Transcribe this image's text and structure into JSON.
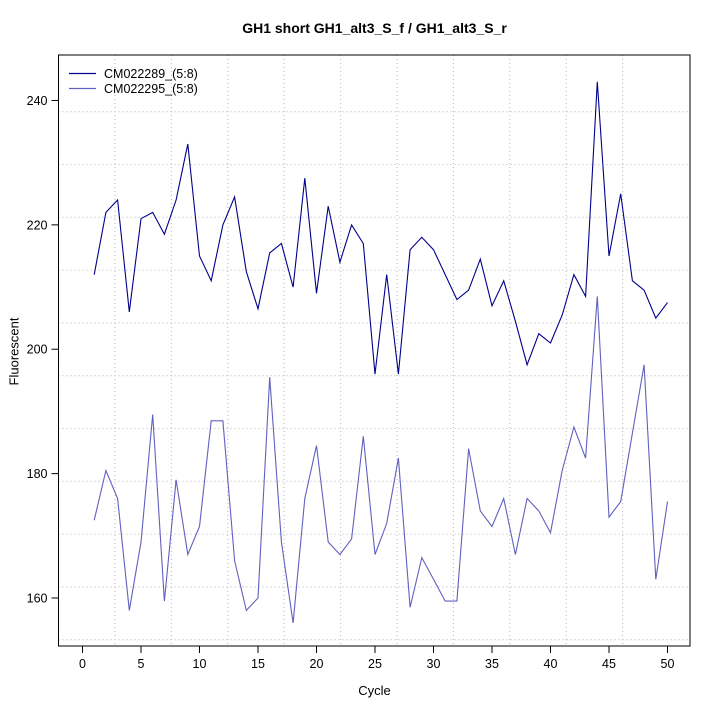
{
  "title": "GH1 short GH1_alt3_S_f / GH1_alt3_S_r",
  "axes": {
    "x_label": "Cycle",
    "y_label": "Fluorescent",
    "x_ticks": [
      0,
      5,
      10,
      15,
      20,
      25,
      30,
      35,
      40,
      45,
      50
    ],
    "y_ticks": [
      160,
      180,
      200,
      220,
      240
    ]
  },
  "legend": {
    "position": "top-left",
    "entries": [
      {
        "label": "CM022289_(5:8)",
        "color": "#00008B"
      },
      {
        "label": "CM022295_(5:8)",
        "color": "#6060C0"
      }
    ]
  },
  "chart_data": {
    "type": "line",
    "title": "GH1 short GH1_alt3_S_f / GH1_alt3_S_r",
    "xlabel": "Cycle",
    "ylabel": "Fluorescent",
    "xlim": [
      -2,
      52
    ],
    "ylim": [
      151.5,
      247.5
    ],
    "grid": "dotted",
    "legend_position": "top-left",
    "x": [
      1,
      2,
      3,
      4,
      5,
      6,
      7,
      8,
      9,
      10,
      11,
      12,
      13,
      14,
      15,
      16,
      17,
      18,
      19,
      20,
      21,
      22,
      23,
      24,
      25,
      26,
      27,
      28,
      29,
      30,
      31,
      32,
      33,
      34,
      35,
      36,
      37,
      38,
      39,
      40,
      41,
      42,
      43,
      44,
      45,
      46,
      47,
      48,
      49,
      50
    ],
    "series": [
      {
        "name": "CM022289_(5:8)",
        "color": "#00008B",
        "values": [
          212,
          222,
          224,
          206,
          221,
          222,
          218.5,
          224,
          233,
          215,
          211,
          220,
          224.5,
          212.5,
          206.5,
          215.5,
          217,
          210,
          227.5,
          209,
          223,
          214,
          220,
          217,
          196,
          212,
          196,
          216,
          218,
          216,
          212,
          208,
          209.5,
          214.5,
          207,
          211,
          204.5,
          197.5,
          202.5,
          201,
          205.5,
          212,
          208.5,
          243,
          215,
          225,
          211,
          209.5,
          205,
          207.5
        ]
      },
      {
        "name": "CM022295_(5:8)",
        "color": "#6060C0",
        "values": [
          172.5,
          180.5,
          176,
          158,
          169,
          189.5,
          159.5,
          179,
          167,
          171.5,
          188.5,
          188.5,
          166,
          158,
          160,
          195.5,
          169,
          156,
          176,
          184.5,
          169,
          167,
          169.5,
          186,
          167,
          172,
          182.5,
          158.5,
          166.5,
          163,
          159.5,
          159.5,
          184,
          174,
          171.5,
          176,
          167,
          176,
          174,
          170.5,
          180.5,
          187.5,
          182.5,
          208.5,
          173,
          175.5,
          186.5,
          197.5,
          163,
          175.5
        ]
      }
    ]
  }
}
